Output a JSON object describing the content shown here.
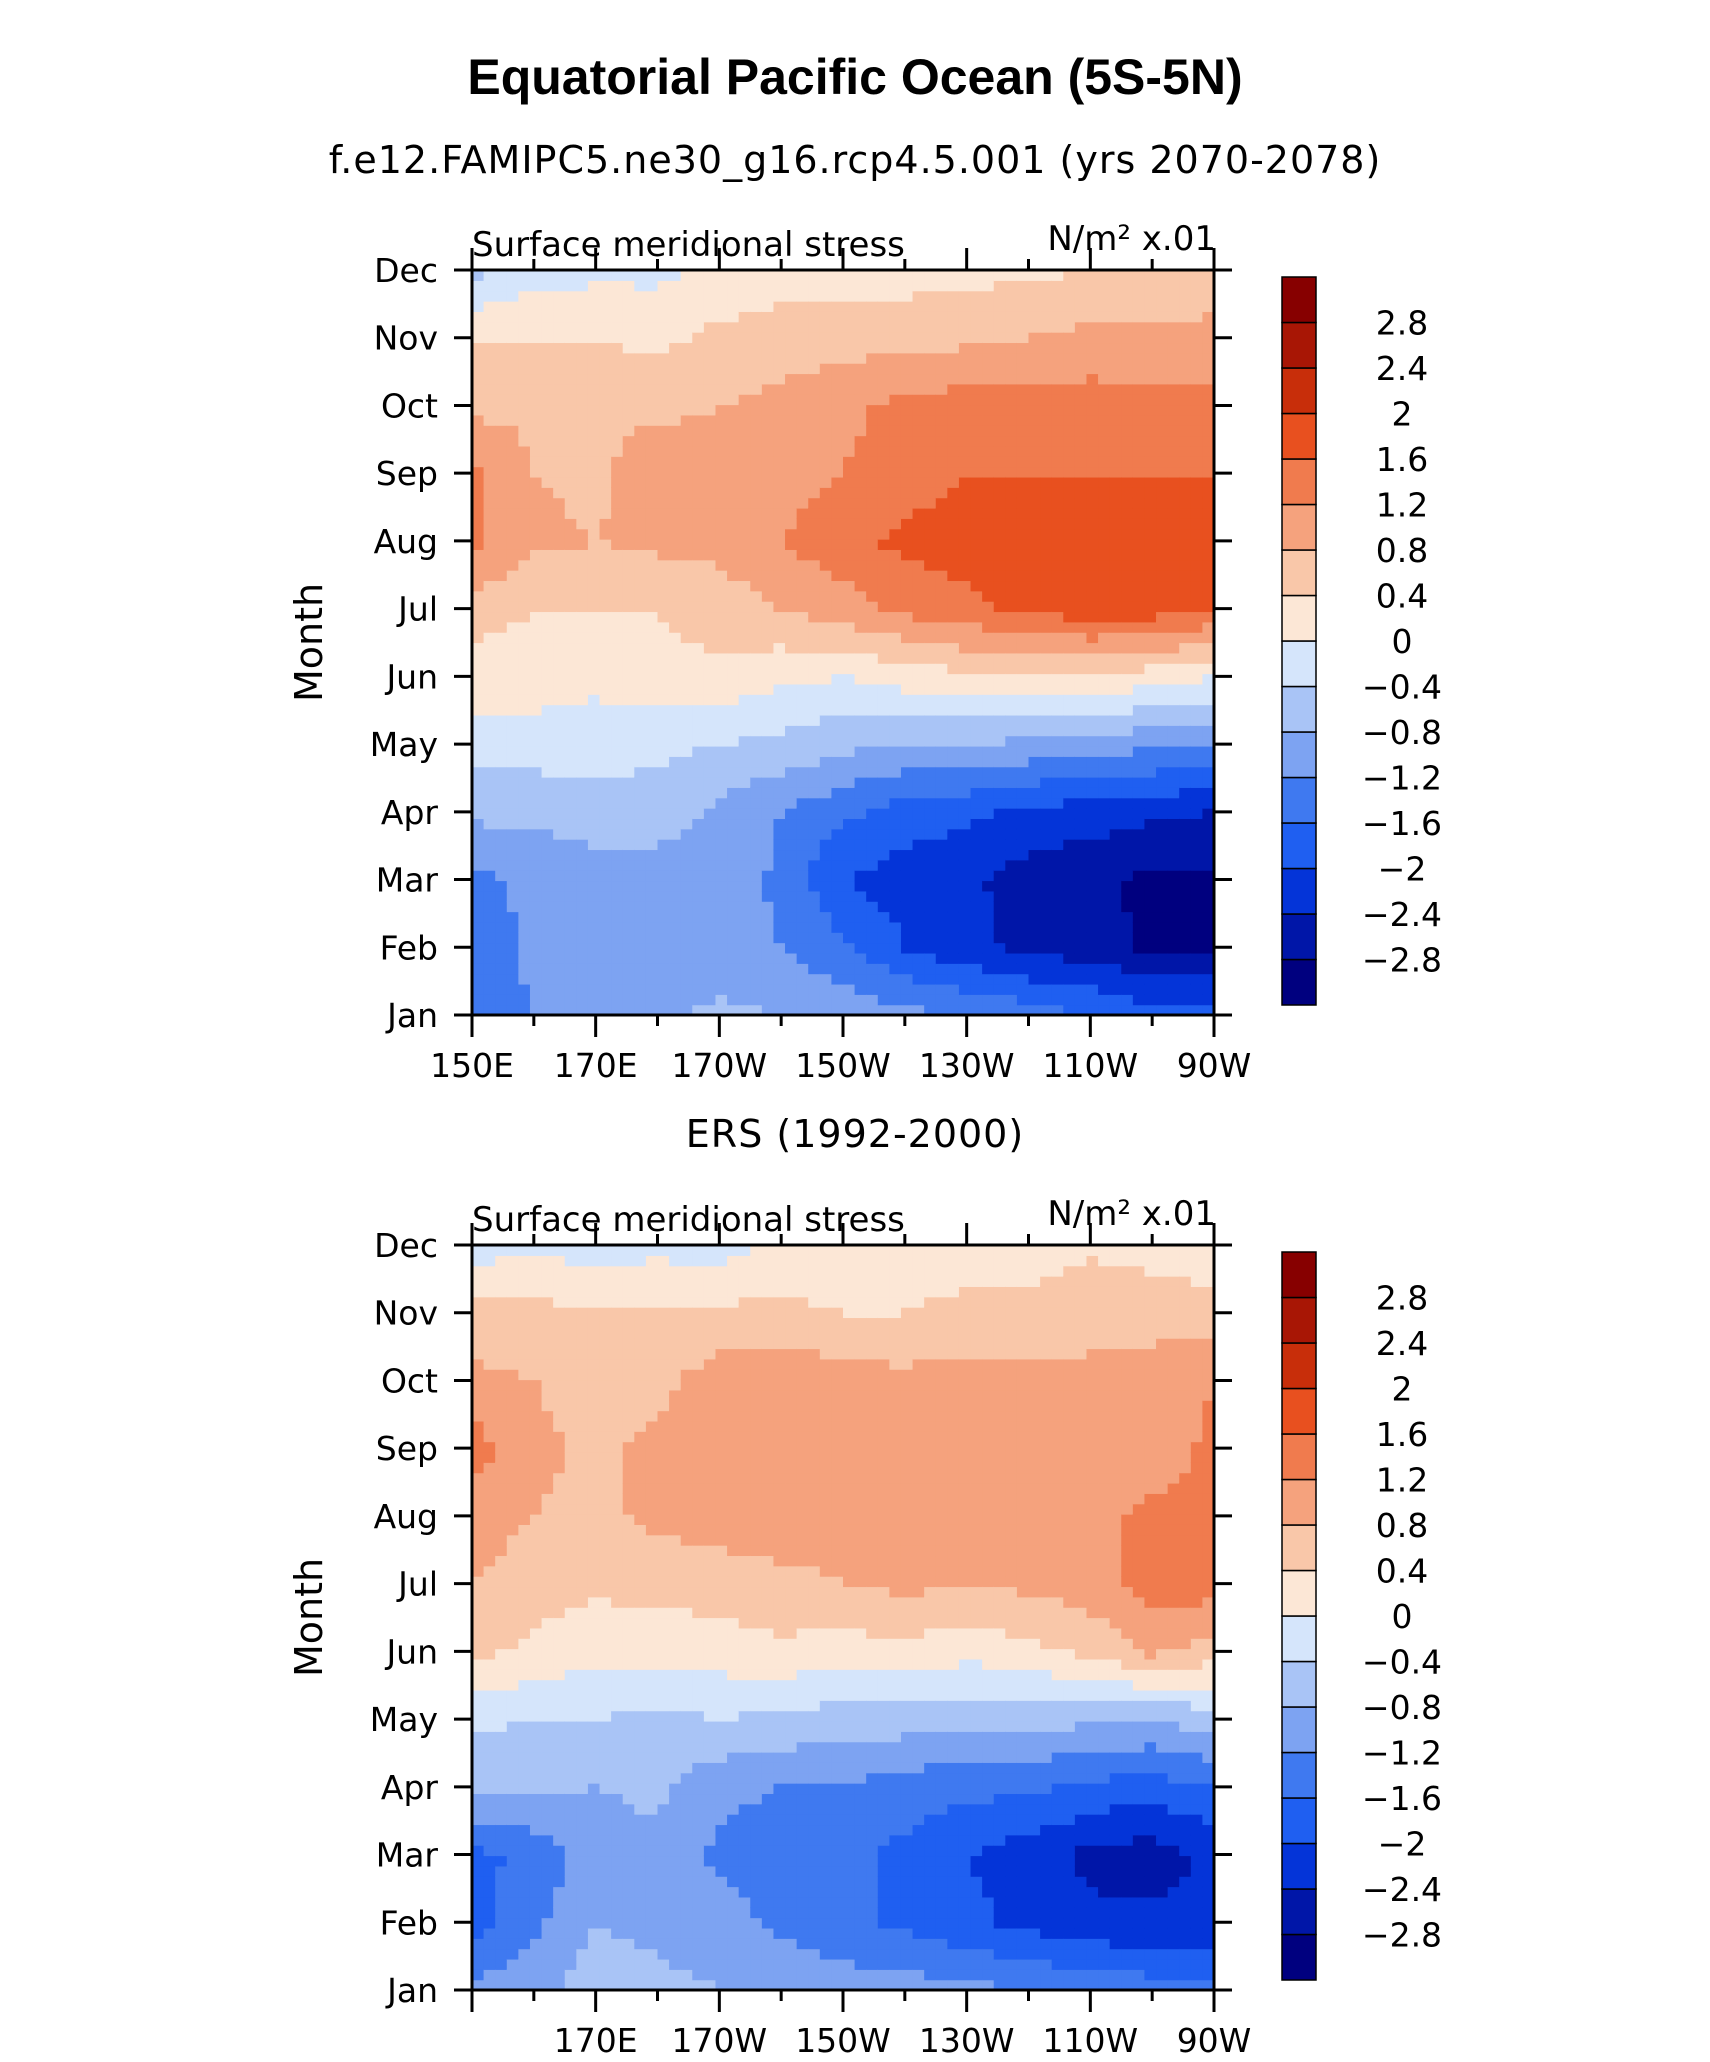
{
  "figure": {
    "title": "Equatorial Pacific Ocean (5S-5N)",
    "levels": [
      -2.8,
      -2.4,
      -2,
      -1.6,
      -1.2,
      -0.8,
      -0.4,
      0,
      0.4,
      0.8,
      1.2,
      1.6,
      2,
      2.4,
      2.8
    ],
    "colors": [
      "#00007f",
      "#0016a8",
      "#0434d8",
      "#1f5ff1",
      "#3f79f0",
      "#7da3f2",
      "#a9c4f6",
      "#d5e5fb",
      "#fce7d6",
      "#f9c7a9",
      "#f5a27d",
      "#f07b4e",
      "#e8501f",
      "#c82e0a",
      "#a81605",
      "#870000"
    ]
  },
  "chart_data": [
    {
      "type": "heatmap",
      "subtitle": "f.e12.FAMIPC5.ne30_g16.rcp4.5.001 (yrs 2070-2078)",
      "left_label": "Surface meridional stress",
      "right_label": "N/m² x.01",
      "ylabel": "Month",
      "x_tick_labels": [
        "150E",
        "170E",
        "170W",
        "150W",
        "130W",
        "110W",
        "90W"
      ],
      "y_tick_labels": [
        "Jan",
        "Feb",
        "Mar",
        "Apr",
        "May",
        "Jun",
        "Jul",
        "Aug",
        "Sep",
        "Oct",
        "Nov",
        "Dec"
      ],
      "x": [
        150,
        160,
        170,
        180,
        190,
        200,
        210,
        220,
        230,
        240,
        250,
        260,
        270
      ],
      "y": [
        "Jan",
        "Feb",
        "Mar",
        "Apr",
        "May",
        "Jun",
        "Jul",
        "Aug",
        "Sep",
        "Oct",
        "Nov",
        "Dec"
      ],
      "z": [
        [
          -1.4,
          -1.2,
          -1.1,
          -0.9,
          -0.7,
          -0.8,
          -0.9,
          -1.1,
          -1.2,
          -1.4,
          -1.6,
          -1.8,
          -1.8
        ],
        [
          -1.5,
          -1.1,
          -1.2,
          -1.1,
          -1.1,
          -1.2,
          -1.5,
          -2.0,
          -2.3,
          -2.5,
          -2.6,
          -2.9,
          -2.9
        ],
        [
          -1.3,
          -1.1,
          -1.0,
          -1.0,
          -0.9,
          -1.3,
          -2.0,
          -2.2,
          -2.3,
          -2.6,
          -2.7,
          -2.9,
          -2.9
        ],
        [
          -0.7,
          -0.7,
          -0.6,
          -0.6,
          -0.9,
          -1.2,
          -1.5,
          -1.8,
          -1.9,
          -2.1,
          -2.2,
          -2.3,
          -2.4
        ],
        [
          -0.2,
          -0.2,
          -0.2,
          -0.3,
          -0.4,
          -0.5,
          -0.7,
          -0.8,
          -0.8,
          -0.9,
          -1.0,
          -1.1,
          -1.2
        ],
        [
          0.2,
          0.2,
          0.1,
          0.3,
          0.3,
          0.1,
          0.0,
          0.2,
          0.3,
          0.3,
          0.4,
          0.2,
          0.0
        ],
        [
          0.6,
          0.4,
          0.4,
          0.4,
          0.6,
          0.8,
          1.0,
          1.3,
          1.5,
          1.7,
          1.8,
          1.8,
          1.6
        ],
        [
          1.3,
          0.9,
          0.8,
          0.9,
          0.9,
          1.2,
          1.5,
          1.7,
          1.8,
          1.8,
          1.8,
          1.8,
          1.7
        ],
        [
          1.3,
          0.8,
          0.7,
          1.1,
          0.9,
          1.0,
          1.2,
          1.4,
          1.6,
          1.6,
          1.6,
          1.6,
          1.6
        ],
        [
          0.7,
          0.7,
          0.7,
          0.7,
          0.8,
          0.9,
          1.1,
          1.3,
          1.4,
          1.4,
          1.4,
          1.3,
          1.3
        ],
        [
          0.4,
          0.4,
          0.4,
          0.3,
          0.5,
          0.6,
          0.6,
          0.7,
          0.7,
          0.8,
          0.9,
          0.9,
          0.9
        ],
        [
          -0.5,
          -0.2,
          -0.1,
          -0.1,
          0.1,
          0.2,
          0.2,
          0.2,
          0.3,
          0.3,
          0.4,
          0.5,
          0.6
        ]
      ]
    },
    {
      "type": "heatmap",
      "subtitle": "ERS (1992-2000)",
      "left_label": "Surface meridional stress",
      "right_label": "N/m² x.01",
      "ylabel": "Month",
      "x_tick_labels": [
        "170E",
        "170W",
        "150W",
        "130W",
        "110W",
        "90W"
      ],
      "y_tick_labels": [
        "Jan",
        "Feb",
        "Mar",
        "Apr",
        "May",
        "Jun",
        "Jul",
        "Aug",
        "Sep",
        "Oct",
        "Nov",
        "Dec"
      ],
      "x": [
        150,
        160,
        170,
        180,
        190,
        200,
        210,
        220,
        230,
        240,
        250,
        260,
        270
      ],
      "y": [
        "Jan",
        "Feb",
        "Mar",
        "Apr",
        "May",
        "Jun",
        "Jul",
        "Aug",
        "Sep",
        "Oct",
        "Nov",
        "Dec"
      ],
      "z": [
        [
          -1.1,
          -0.9,
          -0.6,
          -0.7,
          -0.8,
          -0.8,
          -1.0,
          -1.0,
          -1.1,
          -1.2,
          -1.3,
          -1.4,
          -1.5
        ],
        [
          -1.8,
          -1.3,
          -0.8,
          -0.9,
          -1.0,
          -1.3,
          -1.5,
          -1.7,
          -1.9,
          -2.1,
          -2.3,
          -2.3,
          -2.3
        ],
        [
          -1.7,
          -1.5,
          -1.0,
          -0.9,
          -1.3,
          -1.4,
          -1.5,
          -1.7,
          -2.0,
          -2.2,
          -2.5,
          -2.6,
          -2.3
        ],
        [
          -0.7,
          -0.7,
          -0.8,
          -0.7,
          -1.1,
          -1.2,
          -1.2,
          -1.4,
          -1.5,
          -1.5,
          -1.7,
          -1.8,
          -1.6
        ],
        [
          -0.3,
          -0.4,
          -0.4,
          -0.5,
          -0.4,
          -0.5,
          -0.6,
          -0.6,
          -0.6,
          -0.7,
          -0.7,
          -0.8,
          -0.6
        ],
        [
          0.5,
          0.3,
          0.1,
          0.2,
          0.2,
          0.3,
          0.2,
          0.3,
          0.1,
          0.3,
          0.5,
          0.9,
          0.6
        ],
        [
          0.8,
          0.6,
          0.5,
          0.5,
          0.6,
          0.7,
          0.8,
          0.9,
          0.8,
          0.9,
          1.0,
          1.4,
          1.4
        ],
        [
          1.0,
          0.8,
          0.7,
          0.9,
          1.0,
          1.0,
          1.0,
          1.1,
          1.0,
          1.0,
          1.1,
          1.3,
          1.3
        ],
        [
          1.4,
          0.9,
          0.7,
          0.9,
          1.0,
          1.0,
          1.1,
          1.0,
          1.0,
          0.9,
          0.8,
          1.0,
          1.3
        ],
        [
          0.9,
          0.8,
          0.6,
          0.7,
          1.0,
          1.1,
          1.0,
          0.9,
          1.0,
          0.9,
          0.8,
          0.9,
          1.2
        ],
        [
          0.6,
          0.5,
          0.5,
          0.4,
          0.5,
          0.5,
          0.4,
          0.4,
          0.5,
          0.6,
          0.8,
          0.7,
          0.6
        ],
        [
          -0.2,
          -0.1,
          -0.2,
          -0.1,
          -0.2,
          0.1,
          0.1,
          0.2,
          0.2,
          0.1,
          0.3,
          0.2,
          0.1
        ]
      ]
    }
  ]
}
